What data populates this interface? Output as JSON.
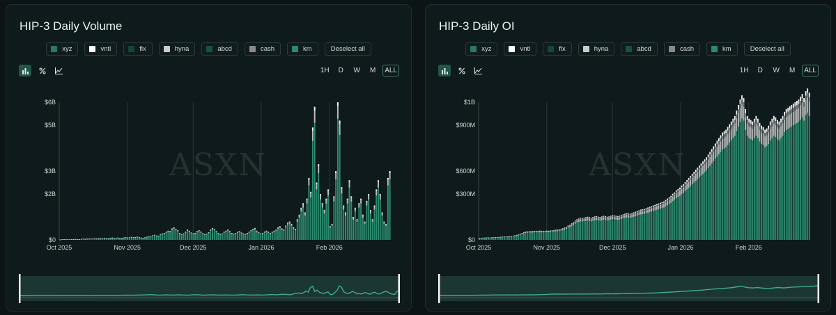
{
  "colors": {
    "accent": "#2a8a6e",
    "bar_top": "#c6c9c8",
    "cap": "#f1f3f2"
  },
  "panels": [
    {
      "title": "HIP-3 Daily Volume",
      "legend": [
        {
          "label": "xyz",
          "color": "#2d7865"
        },
        {
          "label": "vntl",
          "color": "#ffffff"
        },
        {
          "label": "flx",
          "color": "#14463a"
        },
        {
          "label": "hyna",
          "color": "#cccccc"
        },
        {
          "label": "abcd",
          "color": "#1a5242"
        },
        {
          "label": "cash",
          "color": "#8a8a8a"
        },
        {
          "label": "km",
          "color": "#2a8a6e"
        }
      ],
      "deselect_label": "Deselect all",
      "range_buttons": [
        "1H",
        "D",
        "W",
        "M",
        "ALL"
      ],
      "active_range": "ALL",
      "watermark": "ASXN"
    },
    {
      "title": "HIP-3 Daily OI",
      "legend": [
        {
          "label": "xyz",
          "color": "#2d7865"
        },
        {
          "label": "vntl",
          "color": "#ffffff"
        },
        {
          "label": "flx",
          "color": "#14463a"
        },
        {
          "label": "hyna",
          "color": "#cccccc"
        },
        {
          "label": "abcd",
          "color": "#1a5242"
        },
        {
          "label": "cash",
          "color": "#8a8a8a"
        },
        {
          "label": "km",
          "color": "#2a8a6e"
        }
      ],
      "deselect_label": "Deselect all",
      "range_buttons": [
        "1H",
        "D",
        "W",
        "M",
        "ALL"
      ],
      "active_range": "ALL",
      "watermark": "ASXN"
    }
  ],
  "chart_data": [
    {
      "type": "bar",
      "title": "HIP-3 Daily Volume",
      "stacked": true,
      "x_tick_labels": [
        "Oct 2025",
        "Nov 2025",
        "Dec 2025",
        "Jan 2026",
        "Feb 2026"
      ],
      "y_tick_labels": [
        "$0",
        "$2B",
        "$3B",
        "$5B",
        "$6B"
      ],
      "ylim": [
        0,
        6000000000
      ],
      "grid": "vertical lines at month boundaries",
      "x_range": [
        "2025-10-01",
        "2026-02-28"
      ],
      "total_values": [
        0.01,
        0.02,
        0.02,
        0.02,
        0.03,
        0.02,
        0.03,
        0.03,
        0.04,
        0.03,
        0.03,
        0.04,
        0.05,
        0.04,
        0.05,
        0.06,
        0.05,
        0.06,
        0.07,
        0.06,
        0.07,
        0.08,
        0.07,
        0.09,
        0.08,
        0.07,
        0.09,
        0.1,
        0.08,
        0.09,
        0.1,
        0.09,
        0.08,
        0.1,
        0.12,
        0.1,
        0.11,
        0.13,
        0.11,
        0.12,
        0.14,
        0.12,
        0.1,
        0.09,
        0.11,
        0.13,
        0.15,
        0.17,
        0.2,
        0.22,
        0.19,
        0.18,
        0.25,
        0.28,
        0.3,
        0.35,
        0.4,
        0.38,
        0.5,
        0.55,
        0.48,
        0.42,
        0.3,
        0.25,
        0.28,
        0.35,
        0.45,
        0.4,
        0.32,
        0.28,
        0.3,
        0.38,
        0.42,
        0.36,
        0.29,
        0.25,
        0.27,
        0.33,
        0.45,
        0.52,
        0.48,
        0.38,
        0.3,
        0.26,
        0.28,
        0.35,
        0.4,
        0.45,
        0.38,
        0.3,
        0.27,
        0.3,
        0.35,
        0.38,
        0.32,
        0.28,
        0.25,
        0.3,
        0.35,
        0.42,
        0.48,
        0.52,
        0.4,
        0.33,
        0.28,
        0.3,
        0.36,
        0.4,
        0.35,
        0.3,
        0.35,
        0.4,
        0.45,
        0.55,
        0.6,
        0.5,
        0.45,
        0.62,
        0.75,
        0.8,
        0.7,
        0.55,
        0.48,
        0.9,
        1.1,
        1.4,
        1.6,
        1.2,
        1.8,
        2.7,
        2.1,
        4.9,
        5.8,
        2.5,
        3.3,
        2.0,
        1.6,
        1.3,
        1.8,
        2.2,
        0.6,
        0.7,
        1.9,
        3.0,
        6.0,
        5.2,
        2.3,
        1.5,
        1.2,
        1.8,
        2.6,
        1.9,
        1.0,
        1.4,
        0.9,
        1.6,
        1.8,
        1.1,
        0.8,
        1.7,
        2.0,
        1.3,
        0.9,
        1.5,
        2.2,
        2.6,
        2.0,
        1.2,
        0.8,
        0.7,
        2.7,
        3.0
      ],
      "total_values_unit": "billions USD",
      "series": [
        {
          "name": "xyz",
          "share": 0.88
        },
        {
          "name": "hyna",
          "share": 0.09
        },
        {
          "name": "vntl",
          "share": 0.03
        }
      ]
    },
    {
      "type": "bar",
      "title": "HIP-3 Daily OI",
      "stacked": true,
      "x_tick_labels": [
        "Oct 2025",
        "Nov 2025",
        "Dec 2025",
        "Jan 2026",
        "Feb 2026"
      ],
      "y_tick_labels": [
        "$0",
        "$300M",
        "$600M",
        "$900M",
        "$1B"
      ],
      "ylim": [
        0,
        1000000000
      ],
      "grid": "vertical lines at month boundaries",
      "x_range": [
        "2025-10-01",
        "2026-02-28"
      ],
      "total_values": [
        14,
        15,
        16,
        16,
        17,
        17,
        17,
        18,
        18,
        19,
        20,
        21,
        22,
        23,
        24,
        24,
        25,
        26,
        28,
        30,
        33,
        36,
        40,
        45,
        50,
        56,
        60,
        62,
        63,
        63,
        64,
        65,
        66,
        65,
        67,
        66,
        65,
        65,
        67,
        66,
        68,
        70,
        72,
        74,
        75,
        77,
        80,
        85,
        90,
        95,
        105,
        110,
        120,
        130,
        140,
        150,
        155,
        160,
        158,
        162,
        165,
        168,
        165,
        160,
        166,
        170,
        172,
        168,
        166,
        170,
        175,
        172,
        168,
        170,
        175,
        180,
        178,
        175,
        172,
        176,
        180,
        185,
        190,
        195,
        192,
        190,
        195,
        200,
        205,
        210,
        215,
        220,
        222,
        225,
        230,
        235,
        240,
        245,
        250,
        255,
        260,
        265,
        270,
        275,
        280,
        290,
        300,
        310,
        320,
        335,
        345,
        360,
        370,
        380,
        395,
        405,
        420,
        435,
        450,
        465,
        480,
        495,
        510,
        525,
        540,
        555,
        570,
        585,
        600,
        620,
        640,
        660,
        680,
        700,
        720,
        740,
        760,
        780,
        790,
        800,
        820,
        840,
        860,
        880,
        900,
        940,
        980,
        1020,
        1050,
        1030,
        950,
        900,
        880,
        870,
        860,
        880,
        900,
        880,
        850,
        830,
        820,
        800,
        810,
        830,
        860,
        880,
        900,
        890,
        870,
        860,
        880,
        900,
        930,
        950,
        960,
        970,
        980,
        990,
        1000,
        1010,
        1020,
        1040,
        1060,
        1030,
        1080,
        1100,
        1070
      ],
      "total_values_unit": "millions USD",
      "series": [
        {
          "name": "xyz",
          "share": 0.84
        },
        {
          "name": "hyna",
          "share": 0.1
        },
        {
          "name": "cash",
          "share": 0.03
        },
        {
          "name": "vntl",
          "share": 0.03
        }
      ]
    }
  ]
}
